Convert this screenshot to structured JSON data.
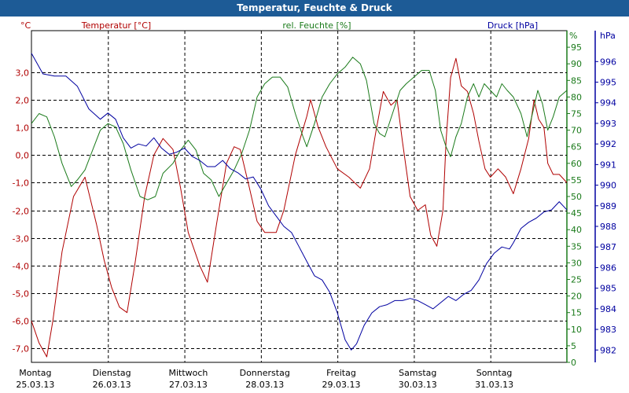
{
  "window": {
    "title": "Temperatur, Feuchte & Druck"
  },
  "colors": {
    "temperature": "#b00000",
    "humidity": "#1a7a1a",
    "pressure": "#0000a0",
    "titlebar": "#1d5b96"
  },
  "chart_data": {
    "type": "line",
    "title": "Temperatur, Feuchte & Druck",
    "grid": true,
    "x_range": [
      0,
      7
    ],
    "x_ticks": [
      {
        "day": "Montag",
        "date": "25.03.13"
      },
      {
        "day": "Dienstag",
        "date": "26.03.13"
      },
      {
        "day": "Mittwoch",
        "date": "27.03.13"
      },
      {
        "day": "Donnerstag",
        "date": "28.03.13"
      },
      {
        "day": "Freitag",
        "date": "29.03.13"
      },
      {
        "day": "Samstag",
        "date": "30.03.13"
      },
      {
        "day": "Sonntag",
        "date": "31.03.13"
      }
    ],
    "axes": {
      "temperature": {
        "unit": "°C",
        "label": "Temperatur [°C]",
        "range": [
          -7.5,
          4.5
        ],
        "ticks": [
          "3,0",
          "2,0",
          "1,0",
          "0,0",
          "-1,0",
          "-2,0",
          "-3,0",
          "-4,0",
          "-5,0",
          "-6,0",
          "-7,0"
        ]
      },
      "humidity": {
        "unit": "%",
        "label": "rel. Feuchte [%]",
        "range": [
          0,
          100
        ],
        "ticks": [
          "95",
          "90",
          "85",
          "80",
          "75",
          "70",
          "65",
          "60",
          "55",
          "50",
          "45",
          "40",
          "35",
          "30",
          "25",
          "20",
          "15",
          "10",
          "5",
          "0"
        ]
      },
      "pressure": {
        "unit": "hPa",
        "label": "Druck [hPa]",
        "range": [
          981.4,
          997.5
        ],
        "ticks": [
          "996",
          "995",
          "994",
          "993",
          "992",
          "991",
          "990",
          "989",
          "988",
          "987",
          "986",
          "985",
          "984",
          "983",
          "982"
        ]
      }
    },
    "series": [
      {
        "name": "Temperatur [°C]",
        "axis": "temperature",
        "color": "#b00000",
        "points": [
          [
            0,
            -6.0
          ],
          [
            0.1,
            -6.8
          ],
          [
            0.2,
            -7.3
          ],
          [
            0.28,
            -6.0
          ],
          [
            0.4,
            -3.5
          ],
          [
            0.55,
            -1.5
          ],
          [
            0.7,
            -0.8
          ],
          [
            0.85,
            -2.5
          ],
          [
            0.95,
            -3.8
          ],
          [
            1.05,
            -4.8
          ],
          [
            1.15,
            -5.5
          ],
          [
            1.25,
            -5.7
          ],
          [
            1.35,
            -4.0
          ],
          [
            1.48,
            -1.5
          ],
          [
            1.6,
            0.0
          ],
          [
            1.72,
            0.6
          ],
          [
            1.85,
            0.2
          ],
          [
            1.95,
            -1.2
          ],
          [
            2.05,
            -2.8
          ],
          [
            2.2,
            -4.0
          ],
          [
            2.3,
            -4.6
          ],
          [
            2.42,
            -2.5
          ],
          [
            2.55,
            -0.3
          ],
          [
            2.65,
            0.3
          ],
          [
            2.73,
            0.2
          ],
          [
            2.85,
            -1.2
          ],
          [
            2.95,
            -2.4
          ],
          [
            3.05,
            -2.8
          ],
          [
            3.2,
            -2.8
          ],
          [
            3.3,
            -2.0
          ],
          [
            3.45,
            0.0
          ],
          [
            3.6,
            1.4
          ],
          [
            3.65,
            2.0
          ],
          [
            3.75,
            1.0
          ],
          [
            3.85,
            0.3
          ],
          [
            4.0,
            -0.5
          ],
          [
            4.15,
            -0.8
          ],
          [
            4.3,
            -1.2
          ],
          [
            4.42,
            -0.5
          ],
          [
            4.5,
            0.8
          ],
          [
            4.6,
            2.3
          ],
          [
            4.7,
            1.8
          ],
          [
            4.78,
            2.0
          ],
          [
            4.85,
            0.5
          ],
          [
            4.95,
            -1.5
          ],
          [
            5.05,
            -2.0
          ],
          [
            5.15,
            -1.8
          ],
          [
            5.22,
            -2.9
          ],
          [
            5.3,
            -3.3
          ],
          [
            5.38,
            -2.0
          ],
          [
            5.42,
            0.5
          ],
          [
            5.48,
            2.8
          ],
          [
            5.55,
            3.5
          ],
          [
            5.62,
            2.5
          ],
          [
            5.7,
            2.3
          ],
          [
            5.78,
            1.5
          ],
          [
            5.85,
            0.5
          ],
          [
            5.93,
            -0.5
          ],
          [
            6.0,
            -0.8
          ],
          [
            6.1,
            -0.5
          ],
          [
            6.2,
            -0.8
          ],
          [
            6.3,
            -1.4
          ],
          [
            6.4,
            -0.5
          ],
          [
            6.5,
            0.6
          ],
          [
            6.57,
            2.0
          ],
          [
            6.63,
            1.3
          ],
          [
            6.7,
            1.0
          ],
          [
            6.75,
            -0.3
          ],
          [
            6.82,
            -0.7
          ],
          [
            6.9,
            -0.7
          ],
          [
            7.0,
            -1.0
          ]
        ]
      },
      {
        "name": "rel. Feuchte [%]",
        "axis": "humidity",
        "color": "#1a7a1a",
        "points": [
          [
            0,
            72
          ],
          [
            0.1,
            75
          ],
          [
            0.2,
            74
          ],
          [
            0.3,
            68
          ],
          [
            0.4,
            60
          ],
          [
            0.52,
            53
          ],
          [
            0.6,
            55
          ],
          [
            0.7,
            58
          ],
          [
            0.8,
            64
          ],
          [
            0.9,
            70
          ],
          [
            1.0,
            72
          ],
          [
            1.1,
            71
          ],
          [
            1.2,
            66
          ],
          [
            1.3,
            58
          ],
          [
            1.42,
            50
          ],
          [
            1.52,
            49
          ],
          [
            1.62,
            50
          ],
          [
            1.72,
            57
          ],
          [
            1.85,
            60
          ],
          [
            1.95,
            64
          ],
          [
            2.05,
            67
          ],
          [
            2.15,
            64
          ],
          [
            2.25,
            57
          ],
          [
            2.35,
            55
          ],
          [
            2.45,
            50
          ],
          [
            2.55,
            54
          ],
          [
            2.65,
            58
          ],
          [
            2.75,
            63
          ],
          [
            2.85,
            70
          ],
          [
            2.95,
            80
          ],
          [
            3.05,
            84
          ],
          [
            3.15,
            86
          ],
          [
            3.25,
            86
          ],
          [
            3.35,
            83
          ],
          [
            3.45,
            75
          ],
          [
            3.55,
            68
          ],
          [
            3.6,
            65
          ],
          [
            3.7,
            72
          ],
          [
            3.8,
            80
          ],
          [
            3.9,
            84
          ],
          [
            4.0,
            87
          ],
          [
            4.1,
            89
          ],
          [
            4.2,
            92
          ],
          [
            4.3,
            90
          ],
          [
            4.38,
            85
          ],
          [
            4.48,
            72
          ],
          [
            4.55,
            69
          ],
          [
            4.62,
            68
          ],
          [
            4.72,
            75
          ],
          [
            4.82,
            82
          ],
          [
            4.9,
            84
          ],
          [
            5.0,
            86
          ],
          [
            5.1,
            88
          ],
          [
            5.2,
            88
          ],
          [
            5.28,
            82
          ],
          [
            5.35,
            70
          ],
          [
            5.42,
            65
          ],
          [
            5.48,
            62
          ],
          [
            5.55,
            68
          ],
          [
            5.62,
            72
          ],
          [
            5.7,
            80
          ],
          [
            5.78,
            84
          ],
          [
            5.85,
            80
          ],
          [
            5.92,
            84
          ],
          [
            6.0,
            82
          ],
          [
            6.08,
            80
          ],
          [
            6.15,
            84
          ],
          [
            6.22,
            82
          ],
          [
            6.3,
            80
          ],
          [
            6.4,
            75
          ],
          [
            6.48,
            68
          ],
          [
            6.55,
            75
          ],
          [
            6.62,
            82
          ],
          [
            6.68,
            78
          ],
          [
            6.75,
            70
          ],
          [
            6.82,
            74
          ],
          [
            6.9,
            80
          ],
          [
            7.0,
            82
          ]
        ]
      },
      {
        "name": "Druck [hPa]",
        "axis": "pressure",
        "color": "#0000a0",
        "points": [
          [
            0,
            996.4
          ],
          [
            0.15,
            995.4
          ],
          [
            0.3,
            995.3
          ],
          [
            0.45,
            995.3
          ],
          [
            0.6,
            994.8
          ],
          [
            0.75,
            993.7
          ],
          [
            0.9,
            993.2
          ],
          [
            1.0,
            993.5
          ],
          [
            1.1,
            993.2
          ],
          [
            1.2,
            992.3
          ],
          [
            1.3,
            991.8
          ],
          [
            1.4,
            992.0
          ],
          [
            1.5,
            991.9
          ],
          [
            1.6,
            992.3
          ],
          [
            1.7,
            991.8
          ],
          [
            1.8,
            991.5
          ],
          [
            1.9,
            991.6
          ],
          [
            2.0,
            991.8
          ],
          [
            2.1,
            991.4
          ],
          [
            2.2,
            991.2
          ],
          [
            2.3,
            990.9
          ],
          [
            2.4,
            990.9
          ],
          [
            2.5,
            991.2
          ],
          [
            2.6,
            990.8
          ],
          [
            2.7,
            990.6
          ],
          [
            2.8,
            990.3
          ],
          [
            2.9,
            990.4
          ],
          [
            3.0,
            989.8
          ],
          [
            3.1,
            989.0
          ],
          [
            3.2,
            988.5
          ],
          [
            3.3,
            988.0
          ],
          [
            3.4,
            987.7
          ],
          [
            3.5,
            987.0
          ],
          [
            3.6,
            986.3
          ],
          [
            3.7,
            985.6
          ],
          [
            3.8,
            985.4
          ],
          [
            3.9,
            984.8
          ],
          [
            4.0,
            983.8
          ],
          [
            4.1,
            982.5
          ],
          [
            4.18,
            982.0
          ],
          [
            4.25,
            982.3
          ],
          [
            4.35,
            983.2
          ],
          [
            4.45,
            983.8
          ],
          [
            4.55,
            984.1
          ],
          [
            4.65,
            984.2
          ],
          [
            4.75,
            984.4
          ],
          [
            4.85,
            984.4
          ],
          [
            4.95,
            984.5
          ],
          [
            5.05,
            984.4
          ],
          [
            5.15,
            984.2
          ],
          [
            5.25,
            984.0
          ],
          [
            5.35,
            984.3
          ],
          [
            5.45,
            984.6
          ],
          [
            5.55,
            984.4
          ],
          [
            5.65,
            984.7
          ],
          [
            5.75,
            984.9
          ],
          [
            5.85,
            985.4
          ],
          [
            5.95,
            986.2
          ],
          [
            6.05,
            986.7
          ],
          [
            6.15,
            987.0
          ],
          [
            6.25,
            986.9
          ],
          [
            6.3,
            987.2
          ],
          [
            6.4,
            987.9
          ],
          [
            6.5,
            988.2
          ],
          [
            6.6,
            988.4
          ],
          [
            6.7,
            988.7
          ],
          [
            6.8,
            988.8
          ],
          [
            6.9,
            989.2
          ],
          [
            6.95,
            989.0
          ],
          [
            7.0,
            988.8
          ]
        ]
      }
    ]
  }
}
